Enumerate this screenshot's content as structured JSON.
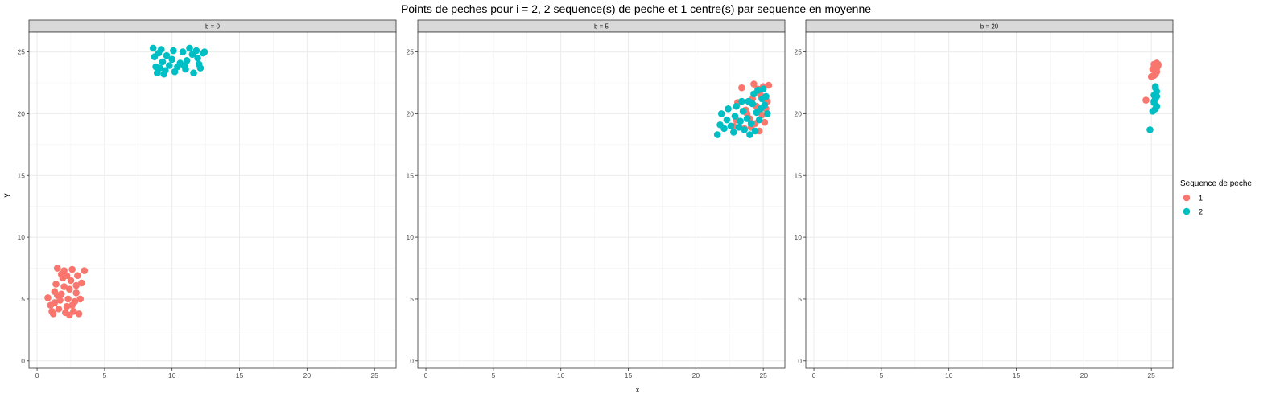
{
  "chart_data": {
    "type": "scatter",
    "title": "Points de peches pour i = 2, 2 sequence(s) de peche et 1 centre(s) par sequence en moyenne",
    "xlabel": "x",
    "ylabel": "y",
    "xlim": [
      -0.6,
      26.6
    ],
    "ylim": [
      -0.6,
      26.6
    ],
    "x_ticks": [
      "0",
      "5",
      "10",
      "15",
      "20",
      "25"
    ],
    "y_ticks": [
      "0",
      "5",
      "10",
      "15",
      "20",
      "25"
    ],
    "grid": true,
    "legend": {
      "title": "Sequence de peche",
      "placement": "right",
      "entries": [
        {
          "label": "1",
          "color": "#F8766D"
        },
        {
          "label": "2",
          "color": "#00BFC4"
        }
      ]
    },
    "panels": [
      {
        "strip": "b = 0",
        "series": [
          {
            "name": "1",
            "color": "#F8766D",
            "points": [
              [
                0.8,
                5.1
              ],
              [
                1.0,
                4.5
              ],
              [
                1.2,
                3.8
              ],
              [
                1.3,
                5.6
              ],
              [
                1.4,
                6.2
              ],
              [
                1.5,
                7.5
              ],
              [
                1.6,
                4.2
              ],
              [
                1.7,
                4.9
              ],
              [
                1.8,
                5.4
              ],
              [
                1.9,
                6.7
              ],
              [
                2.0,
                7.3
              ],
              [
                2.1,
                3.9
              ],
              [
                2.2,
                4.4
              ],
              [
                2.3,
                5.0
              ],
              [
                2.4,
                5.8
              ],
              [
                2.5,
                6.5
              ],
              [
                2.6,
                7.4
              ],
              [
                2.7,
                4.0
              ],
              [
                2.8,
                4.8
              ],
              [
                2.9,
                6.1
              ],
              [
                3.0,
                6.9
              ],
              [
                3.1,
                3.8
              ],
              [
                3.3,
                6.3
              ],
              [
                3.5,
                7.3
              ],
              [
                1.1,
                4.0
              ],
              [
                1.5,
                5.3
              ],
              [
                2.0,
                6.0
              ],
              [
                2.4,
                3.7
              ],
              [
                2.9,
                5.5
              ],
              [
                1.8,
                7.0
              ],
              [
                1.3,
                4.7
              ],
              [
                2.6,
                4.5
              ],
              [
                2.2,
                6.9
              ],
              [
                3.2,
                5.0
              ]
            ]
          }
        ]
      },
      {
        "strip": "b = 0",
        "series": [
          {
            "name": "2",
            "color": "#00BFC4",
            "points": [
              [
                8.6,
                25.3
              ],
              [
                8.7,
                24.6
              ],
              [
                8.8,
                23.8
              ],
              [
                8.9,
                23.3
              ],
              [
                9.0,
                24.9
              ],
              [
                9.2,
                25.2
              ],
              [
                9.3,
                24.2
              ],
              [
                9.5,
                23.5
              ],
              [
                9.6,
                24.7
              ],
              [
                9.8,
                23.9
              ],
              [
                10.0,
                24.4
              ],
              [
                10.1,
                25.1
              ],
              [
                10.2,
                23.4
              ],
              [
                10.4,
                23.8
              ],
              [
                10.6,
                24.1
              ],
              [
                10.8,
                25.0
              ],
              [
                11.0,
                23.6
              ],
              [
                11.1,
                24.3
              ],
              [
                11.3,
                25.3
              ],
              [
                11.5,
                24.8
              ],
              [
                11.6,
                23.3
              ],
              [
                11.8,
                25.1
              ],
              [
                12.0,
                24.0
              ],
              [
                12.1,
                23.7
              ],
              [
                12.3,
                24.9
              ],
              [
                12.4,
                25.0
              ],
              [
                9.4,
                23.2
              ],
              [
                10.9,
                23.9
              ],
              [
                11.9,
                24.5
              ],
              [
                9.1,
                23.7
              ]
            ]
          }
        ]
      },
      {
        "strip": "b = 5",
        "series": [
          {
            "name": "1",
            "color": "#F8766D",
            "points": [
              [
                22.8,
                19.0
              ],
              [
                23.0,
                19.5
              ],
              [
                23.1,
                20.9
              ],
              [
                23.4,
                22.1
              ],
              [
                23.6,
                18.8
              ],
              [
                23.8,
                20.0
              ],
              [
                24.0,
                19.6
              ],
              [
                24.2,
                21.2
              ],
              [
                24.3,
                22.4
              ],
              [
                24.4,
                19.2
              ],
              [
                24.5,
                20.6
              ],
              [
                24.6,
                22.0
              ],
              [
                24.7,
                18.6
              ],
              [
                24.8,
                21.5
              ],
              [
                24.9,
                19.9
              ],
              [
                25.0,
                22.2
              ],
              [
                25.1,
                19.3
              ],
              [
                25.2,
                20.4
              ],
              [
                25.3,
                21.0
              ],
              [
                25.4,
                22.3
              ],
              [
                23.7,
                20.3
              ],
              [
                24.1,
                18.9
              ]
            ]
          },
          {
            "name": "2",
            "color": "#00BFC4",
            "points": [
              [
                21.6,
                18.3
              ],
              [
                21.8,
                19.1
              ],
              [
                21.9,
                20.0
              ],
              [
                22.1,
                18.8
              ],
              [
                22.3,
                19.5
              ],
              [
                22.4,
                20.4
              ],
              [
                22.6,
                19.0
              ],
              [
                22.8,
                18.5
              ],
              [
                22.9,
                19.8
              ],
              [
                23.0,
                20.6
              ],
              [
                23.2,
                18.9
              ],
              [
                23.3,
                19.4
              ],
              [
                23.5,
                20.2
              ],
              [
                23.6,
                18.7
              ],
              [
                23.8,
                19.6
              ],
              [
                23.9,
                21.0
              ],
              [
                24.0,
                18.3
              ],
              [
                24.1,
                19.2
              ],
              [
                24.2,
                20.8
              ],
              [
                24.3,
                21.6
              ],
              [
                24.4,
                18.6
              ],
              [
                24.5,
                20.1
              ],
              [
                24.6,
                21.9
              ],
              [
                24.7,
                19.5
              ],
              [
                24.8,
                20.4
              ],
              [
                24.9,
                21.2
              ],
              [
                25.0,
                22.0
              ],
              [
                25.1,
                20.7
              ],
              [
                25.2,
                21.4
              ],
              [
                25.3,
                20.0
              ],
              [
                23.4,
                21.0
              ]
            ]
          }
        ]
      },
      {
        "strip": "b = 20",
        "series": [
          {
            "name": "1",
            "color": "#F8766D",
            "points": [
              [
                24.6,
                21.1
              ],
              [
                25.0,
                23.0
              ],
              [
                25.1,
                23.6
              ],
              [
                25.2,
                24.0
              ],
              [
                25.3,
                23.2
              ],
              [
                25.3,
                23.8
              ],
              [
                25.4,
                24.1
              ],
              [
                25.4,
                23.4
              ],
              [
                25.5,
                23.9
              ],
              [
                25.5,
                24.0
              ],
              [
                25.2,
                23.1
              ],
              [
                25.4,
                23.7
              ]
            ]
          },
          {
            "name": "2",
            "color": "#00BFC4",
            "points": [
              [
                24.9,
                18.7
              ],
              [
                25.1,
                20.2
              ],
              [
                25.2,
                20.9
              ],
              [
                25.2,
                21.5
              ],
              [
                25.3,
                22.1
              ],
              [
                25.3,
                21.2
              ],
              [
                25.4,
                21.8
              ],
              [
                25.4,
                20.6
              ],
              [
                25.3,
                22.2
              ],
              [
                25.2,
                21.0
              ],
              [
                25.4,
                21.4
              ],
              [
                25.3,
                20.4
              ]
            ]
          }
        ]
      }
    ]
  }
}
